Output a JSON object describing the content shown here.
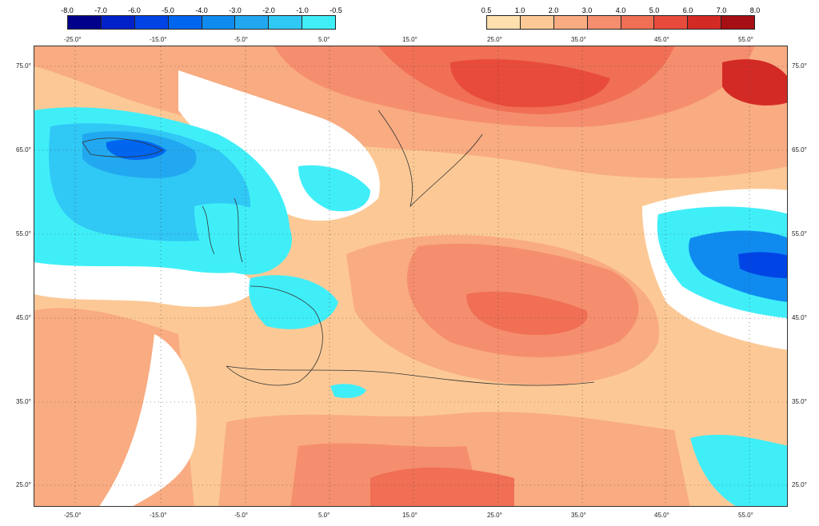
{
  "legend_negative": {
    "labels": [
      "-8.0",
      "-7.0",
      "-6.0",
      "-5.0",
      "-4.0",
      "-3.0",
      "-2.0",
      "-1.0",
      "-0.5"
    ],
    "colors": [
      "#00008b",
      "#0022c8",
      "#0044e6",
      "#0066f0",
      "#0f8bf0",
      "#22a8f0",
      "#30c8f5",
      "#40eef8"
    ]
  },
  "legend_positive": {
    "labels": [
      "0.5",
      "1.0",
      "2.0",
      "3.0",
      "4.0",
      "5.0",
      "6.0",
      "7.0",
      "8.0"
    ],
    "colors": [
      "#fde0ad",
      "#fcc996",
      "#f9ab81",
      "#f58e6e",
      "#f06f55",
      "#e84b3c",
      "#d42a26",
      "#a60f14"
    ]
  },
  "axes": {
    "lon_labels": [
      "-25.0°",
      "-15.0°",
      "-5.0°",
      "5.0°",
      "15.0°",
      "25.0°",
      "35.0°",
      "45.0°",
      "55.0°"
    ],
    "lat_labels": [
      "75.0°",
      "65.0°",
      "55.0°",
      "45.0°",
      "35.0°",
      "25.0°"
    ]
  }
}
